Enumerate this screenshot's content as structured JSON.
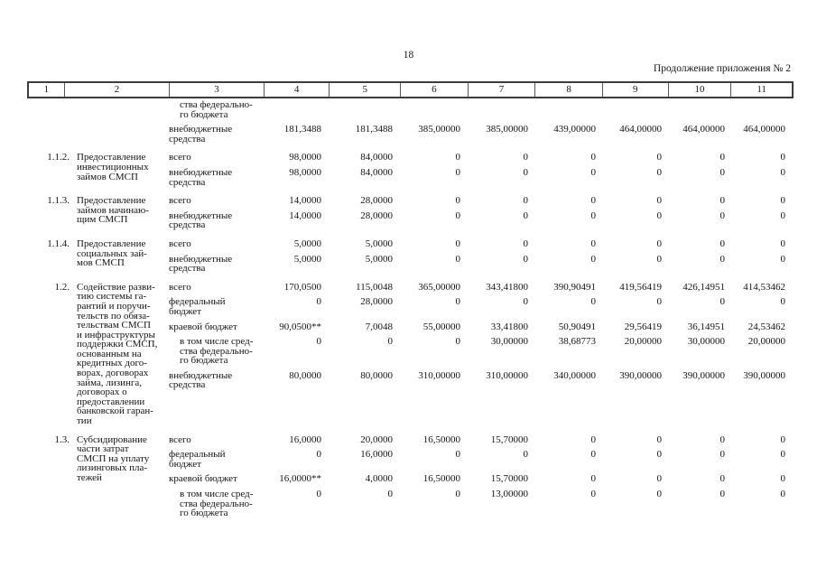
{
  "page": {
    "number": "18",
    "continuation": "Продолжение приложения № 2"
  },
  "table": {
    "column_numbers": [
      "1",
      "2",
      "3",
      "4",
      "5",
      "6",
      "7",
      "8",
      "9",
      "10",
      "11"
    ],
    "sections": [
      {
        "num": "",
        "name": "",
        "rows": [
          {
            "label": "ства федерально-\nго бюджета",
            "indent": true,
            "values": [
              "",
              "",
              "",
              "",
              "",
              "",
              "",
              ""
            ]
          },
          {
            "label": "внебюджетные\nсредства",
            "indent": false,
            "values": [
              "181,3488",
              "181,3488",
              "385,00000",
              "385,00000",
              "439,00000",
              "464,00000",
              "464,00000",
              "464,00000"
            ]
          }
        ]
      },
      {
        "num": "1.1.2.",
        "name": "Предоставление\nинвестиционных\nзаймов СМСП",
        "rows": [
          {
            "label": "всего",
            "indent": false,
            "values": [
              "98,0000",
              "84,0000",
              "0",
              "0",
              "0",
              "0",
              "0",
              "0"
            ]
          },
          {
            "label": "внебюджетные\nсредства",
            "indent": false,
            "values": [
              "98,0000",
              "84,0000",
              "0",
              "0",
              "0",
              "0",
              "0",
              "0"
            ]
          }
        ]
      },
      {
        "num": "1.1.3.",
        "name": "Предоставление\nзаймов начинаю-\nщим СМСП",
        "rows": [
          {
            "label": "всего",
            "indent": false,
            "values": [
              "14,0000",
              "28,0000",
              "0",
              "0",
              "0",
              "0",
              "0",
              "0"
            ]
          },
          {
            "label": "внебюджетные\nсредства",
            "indent": false,
            "values": [
              "14,0000",
              "28,0000",
              "0",
              "0",
              "0",
              "0",
              "0",
              "0"
            ]
          }
        ]
      },
      {
        "num": "1.1.4.",
        "name": "Предоставление\nсоциальных зай-\nмов СМСП",
        "rows": [
          {
            "label": "всего",
            "indent": false,
            "values": [
              "5,0000",
              "5,0000",
              "0",
              "0",
              "0",
              "0",
              "0",
              "0"
            ]
          },
          {
            "label": "внебюджетные\nсредства",
            "indent": false,
            "values": [
              "5,0000",
              "5,0000",
              "0",
              "0",
              "0",
              "0",
              "0",
              "0"
            ]
          }
        ]
      },
      {
        "num": "1.2.",
        "name": "Содействие разви-\nтию системы га-\nрантий и поручи-\nтельств по обяза-\nтельствам СМСП\nи инфраструктуры\nподдержки СМСП,\nоснованным на\nкредитных дого-\nворах, договорах\nзайма, лизинга,\nдоговорах о\nпредоставлении\nбанковской гаран-\nтии",
        "rows": [
          {
            "label": "всего",
            "indent": false,
            "values": [
              "170,0500",
              "115,0048",
              "365,00000",
              "343,41800",
              "390,90491",
              "419,56419",
              "426,14951",
              "414,53462"
            ]
          },
          {
            "label": "федеральный\nбюджет",
            "indent": false,
            "values": [
              "0",
              "28,0000",
              "0",
              "0",
              "0",
              "0",
              "0",
              "0"
            ]
          },
          {
            "label": "краевой бюджет",
            "indent": false,
            "values": [
              "90,0500**",
              "7,0048",
              "55,00000",
              "33,41800",
              "50,90491",
              "29,56419",
              "36,14951",
              "24,53462"
            ]
          },
          {
            "label": "в том числе сред-\nства федерально-\nго бюджета",
            "indent": true,
            "values": [
              "0",
              "0",
              "0",
              "30,00000",
              "38,68773",
              "20,00000",
              "30,00000",
              "20,00000"
            ]
          },
          {
            "label": "внебюджетные\nсредства",
            "indent": false,
            "values": [
              "80,0000",
              "80,0000",
              "310,00000",
              "310,00000",
              "340,00000",
              "390,00000",
              "390,00000",
              "390,00000"
            ]
          }
        ]
      },
      {
        "num": "1.3.",
        "name": "Субсидирование\nчасти затрат\nСМСП на уплату\nлизинговых пла-\nтежей",
        "rows": [
          {
            "label": "всего",
            "indent": false,
            "values": [
              "16,0000",
              "20,0000",
              "16,50000",
              "15,70000",
              "0",
              "0",
              "0",
              "0"
            ]
          },
          {
            "label": "федеральный\nбюджет",
            "indent": false,
            "values": [
              "0",
              "16,0000",
              "0",
              "0",
              "0",
              "0",
              "0",
              "0"
            ]
          },
          {
            "label": "краевой бюджет",
            "indent": false,
            "values": [
              "16,0000**",
              "4,0000",
              "16,50000",
              "15,70000",
              "0",
              "0",
              "0",
              "0"
            ]
          },
          {
            "label": "в том числе сред-\nства федерально-\nго бюджета",
            "indent": true,
            "values": [
              "0",
              "0",
              "0",
              "13,00000",
              "0",
              "0",
              "0",
              "0"
            ]
          }
        ]
      }
    ]
  }
}
